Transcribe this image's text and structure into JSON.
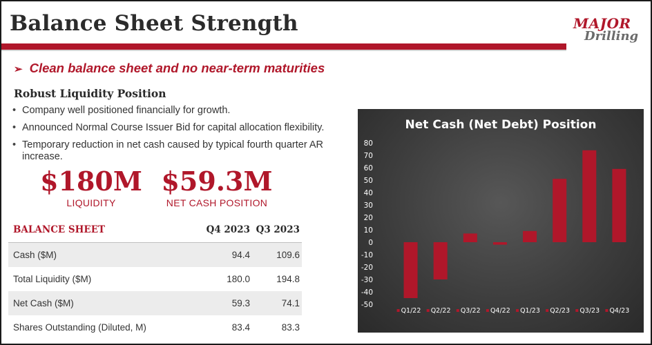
{
  "header": {
    "title": "Balance Sheet Strength",
    "logo_line1": "MAJOR",
    "logo_line2": "Drilling",
    "accent_color": "#b0172a"
  },
  "subtitle": {
    "arrow": "➢",
    "text": "Clean balance sheet and no near-term maturities"
  },
  "liquidity": {
    "heading": "Robust Liquidity Position",
    "bullets": [
      "Company well positioned financially for growth.",
      "Announced Normal Course Issuer Bid for capital allocation flexibility.",
      "Temporary reduction in net cash caused by typical fourth quarter AR increase."
    ]
  },
  "kpis": [
    {
      "value": "$180M",
      "label": "LIQUIDITY"
    },
    {
      "value": "$59.3M",
      "label": "NET CASH POSITION"
    }
  ],
  "table": {
    "headers": [
      "BALANCE SHEET",
      "Q4 2023",
      "Q3 2023"
    ],
    "rows": [
      [
        "Cash ($M)",
        "94.4",
        "109.6"
      ],
      [
        "Total Liquidity ($M)",
        "180.0",
        "194.8"
      ],
      [
        "Net Cash ($M)",
        "59.3",
        "74.1"
      ],
      [
        "Shares Outstanding (Diluted, M)",
        "83.4",
        "83.3"
      ]
    ]
  },
  "chart_data": {
    "type": "bar",
    "title": "Net Cash (Net Debt) Position",
    "categories": [
      "Q1/22",
      "Q2/22",
      "Q3/22",
      "Q4/22",
      "Q1/23",
      "Q2/23",
      "Q3/23",
      "Q4/23"
    ],
    "values": [
      -45,
      -30,
      7,
      -2,
      9,
      51,
      74,
      59
    ],
    "ylim": [
      -50,
      80
    ],
    "yticks": [
      80,
      70,
      60,
      50,
      40,
      30,
      20,
      10,
      0,
      -10,
      -20,
      -30,
      -40,
      -50
    ],
    "bar_color": "#b0172a",
    "legend": "none",
    "grid": false
  }
}
